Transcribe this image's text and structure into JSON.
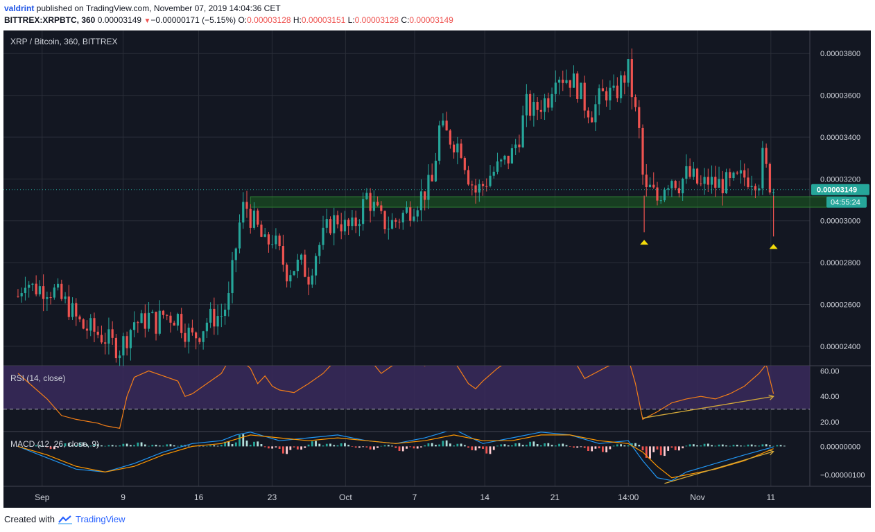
{
  "header": {
    "author": "valdrint",
    "published_text": " published on TradingView.com, November 07, 2019 14:04:36 CET",
    "symbol_line": "BITTREX:XRPBTC, 360",
    "last": "0.00003149",
    "change_arrow": "▼",
    "change": "−0.00000171 (−5.15%)",
    "o_label": "O:",
    "o_value": "0.00003128",
    "h_label": "H:",
    "h_value": "0.00003151",
    "l_label": "L:",
    "l_value": "0.00003128",
    "c_label": "C:",
    "c_value": "0.00003149"
  },
  "footer": {
    "created_with": "Created with",
    "brand": "TradingView"
  },
  "colors": {
    "background": "#131722",
    "grid": "#2a2e39",
    "up": "#26a69a",
    "down": "#ef5350",
    "rsi_line": "#f57f17",
    "rsi_band": "#3a2a5c",
    "macd_line": "#2196f3",
    "signal_line": "#ff9800",
    "support_zone": "#1b5e20",
    "trendline": "#d4a93a",
    "marker": "#f5dd0b",
    "price_tag": "#26a69a"
  },
  "chart_data": {
    "type": "candlestick",
    "main_panel": {
      "title": "XRP / Bitcoin, 360, BITTREX",
      "y_ticks": [
        "0.00003800",
        "0.00003600",
        "0.00003400",
        "0.00003200",
        "0.00003000",
        "0.00002800",
        "0.00002600",
        "0.00002400"
      ],
      "y_tick_values": [
        3.8e-05,
        3.6e-05,
        3.4e-05,
        3.2e-05,
        3e-05,
        2.8e-05,
        2.6e-05,
        2.4e-05
      ],
      "ylim": [
        2.31e-05,
        3.91e-05
      ],
      "last_price_label": "0.00003149",
      "countdown_label": "04:55:24",
      "last_price": 3.149e-05,
      "support_zone": [
        3.065e-05,
        3.115e-05
      ],
      "support_zone_x": [
        16.0,
        57.0
      ],
      "markers": [
        {
          "x": 43.1,
          "price": 2.945e-05
        },
        {
          "x": 52.0,
          "price": 2.925e-05
        }
      ],
      "close_path": [
        [
          0,
          2.64e-05
        ],
        [
          0.5,
          2.73e-05
        ],
        [
          1,
          2.68e-05
        ],
        [
          2,
          2.68e-05
        ],
        [
          2.5,
          2.66e-05
        ],
        [
          3,
          2.62e-05
        ],
        [
          3.5,
          2.59e-05
        ],
        [
          4,
          2.53e-05
        ],
        [
          4.5,
          2.49e-05
        ],
        [
          5,
          2.48e-05
        ],
        [
          5.5,
          2.46e-05
        ],
        [
          6,
          2.44e-05
        ],
        [
          6.5,
          2.41e-05
        ],
        [
          7,
          2.39e-05
        ],
        [
          7.5,
          2.45e-05
        ],
        [
          8,
          2.52e-05
        ],
        [
          8.5,
          2.51e-05
        ],
        [
          9,
          2.54e-05
        ],
        [
          9.5,
          2.51e-05
        ],
        [
          10,
          2.55e-05
        ],
        [
          11,
          2.54e-05
        ],
        [
          11.5,
          2.48e-05
        ],
        [
          12,
          2.44e-05
        ],
        [
          12.5,
          2.47e-05
        ],
        [
          13,
          2.52e-05
        ],
        [
          13.5,
          2.54e-05
        ],
        [
          14,
          2.55e-05
        ],
        [
          14.5,
          2.62e-05
        ],
        [
          14.8,
          2.78e-05
        ],
        [
          15.2,
          2.97e-05
        ],
        [
          15.6,
          3.09e-05
        ],
        [
          16,
          3.02e-05
        ],
        [
          16.5,
          2.96e-05
        ],
        [
          17,
          2.88e-05
        ],
        [
          17.5,
          2.92e-05
        ],
        [
          18,
          2.84e-05
        ],
        [
          18.5,
          2.76e-05
        ],
        [
          19,
          2.78e-05
        ],
        [
          19.5,
          2.79e-05
        ],
        [
          20,
          2.74e-05
        ],
        [
          20.5,
          2.85e-05
        ],
        [
          21,
          2.92e-05
        ],
        [
          21.5,
          2.99e-05
        ],
        [
          22,
          3.01e-05
        ],
        [
          22.5,
          2.97e-05
        ],
        [
          23,
          2.96e-05
        ],
        [
          23.5,
          3.03e-05
        ],
        [
          24,
          3.12e-05
        ],
        [
          24.5,
          3.06e-05
        ],
        [
          25,
          3e-05
        ],
        [
          25.5,
          2.98e-05
        ],
        [
          26,
          3e-05
        ],
        [
          26.5,
          3.03e-05
        ],
        [
          27,
          3.06e-05
        ],
        [
          27.5,
          3.1e-05
        ],
        [
          28,
          3.14e-05
        ],
        [
          28.5,
          3.18e-05
        ],
        [
          29,
          3.44e-05
        ],
        [
          29.5,
          3.41e-05
        ],
        [
          30,
          3.38e-05
        ],
        [
          30.5,
          3.35e-05
        ],
        [
          31,
          3.22e-05
        ],
        [
          31.5,
          3.14e-05
        ],
        [
          32,
          3.17e-05
        ],
        [
          32.5,
          3.22e-05
        ],
        [
          33,
          3.25e-05
        ],
        [
          33.5,
          3.28e-05
        ],
        [
          34,
          3.32e-05
        ],
        [
          34.5,
          3.41e-05
        ],
        [
          35,
          3.55e-05
        ],
        [
          35.5,
          3.52e-05
        ],
        [
          36,
          3.56e-05
        ],
        [
          36.5,
          3.59e-05
        ],
        [
          37,
          3.72e-05
        ],
        [
          37.5,
          3.69e-05
        ],
        [
          38,
          3.68e-05
        ],
        [
          38.5,
          3.64e-05
        ],
        [
          39,
          3.56e-05
        ],
        [
          39.5,
          3.52e-05
        ],
        [
          40,
          3.58e-05
        ],
        [
          40.5,
          3.62e-05
        ],
        [
          41,
          3.59e-05
        ],
        [
          41.5,
          3.66e-05
        ],
        [
          42,
          3.72e-05
        ],
        [
          42.4,
          3.55e-05
        ],
        [
          42.8,
          3.4e-05
        ],
        [
          43.1,
          3.12e-05
        ],
        [
          43.5,
          3.15e-05
        ],
        [
          44,
          3.1e-05
        ],
        [
          44.5,
          3.18e-05
        ],
        [
          45,
          3.21e-05
        ],
        [
          45.5,
          3.18e-05
        ],
        [
          46,
          3.22e-05
        ],
        [
          46.5,
          3.2e-05
        ],
        [
          47,
          3.16e-05
        ],
        [
          47.5,
          3.19e-05
        ],
        [
          48,
          3.17e-05
        ],
        [
          48.5,
          3.18e-05
        ],
        [
          49,
          3.17e-05
        ],
        [
          49.5,
          3.19e-05
        ],
        [
          50,
          3.21e-05
        ],
        [
          50.5,
          3.21e-05
        ],
        [
          51,
          3.2e-05
        ],
        [
          51.3,
          3.32e-05
        ],
        [
          51.6,
          3.2e-05
        ],
        [
          52,
          3.149e-05
        ]
      ]
    },
    "rsi_panel": {
      "label": "RSI (14, close)",
      "y_ticks": [
        "60.00",
        "40.00",
        "20.00"
      ],
      "y_tick_values": [
        60,
        40,
        20
      ],
      "ylim": [
        13,
        64
      ],
      "dashed_level": 30,
      "band": [
        30,
        70
      ],
      "series": [
        [
          0,
          58
        ],
        [
          1,
          48
        ],
        [
          2,
          38
        ],
        [
          3,
          25
        ],
        [
          4,
          22
        ],
        [
          5,
          20
        ],
        [
          5.5,
          19
        ],
        [
          6,
          17
        ],
        [
          6.5,
          16
        ],
        [
          7,
          15
        ],
        [
          7.5,
          40
        ],
        [
          8,
          55
        ],
        [
          9,
          60
        ],
        [
          10,
          56
        ],
        [
          11,
          52
        ],
        [
          11.5,
          40
        ],
        [
          12,
          42
        ],
        [
          13,
          50
        ],
        [
          14,
          58
        ],
        [
          14.5,
          68
        ],
        [
          15,
          72
        ],
        [
          16,
          62
        ],
        [
          16.5,
          50
        ],
        [
          17,
          56
        ],
        [
          17.5,
          48
        ],
        [
          18,
          45
        ],
        [
          19,
          43
        ],
        [
          20,
          50
        ],
        [
          21,
          58
        ],
        [
          22,
          70
        ],
        [
          23,
          66
        ],
        [
          24,
          72
        ],
        [
          25,
          58
        ],
        [
          26,
          66
        ],
        [
          27,
          70
        ],
        [
          28,
          64
        ],
        [
          29,
          75
        ],
        [
          30,
          68
        ],
        [
          31,
          50
        ],
        [
          31.5,
          46
        ],
        [
          32,
          52
        ],
        [
          33,
          62
        ],
        [
          34,
          70
        ],
        [
          35,
          75
        ],
        [
          36,
          72
        ],
        [
          37,
          78
        ],
        [
          38,
          74
        ],
        [
          39,
          54
        ],
        [
          40,
          60
        ],
        [
          41,
          66
        ],
        [
          42,
          70
        ],
        [
          42.5,
          50
        ],
        [
          43,
          22
        ],
        [
          43.5,
          25
        ],
        [
          44,
          28
        ],
        [
          45,
          35
        ],
        [
          46,
          38
        ],
        [
          47,
          40
        ],
        [
          48,
          38
        ],
        [
          49,
          42
        ],
        [
          50,
          48
        ],
        [
          51,
          58
        ],
        [
          51.5,
          65
        ],
        [
          52,
          42
        ]
      ],
      "trendline": [
        [
          43,
          23
        ],
        [
          52,
          40
        ]
      ]
    },
    "macd_panel": {
      "label": "MACD (12, 26, close, 9)",
      "y_ticks": [
        "0.00000000",
        "−0.00000100"
      ],
      "y_tick_values": [
        0,
        -1e-06
      ],
      "ylim": [
        -1.4e-06,
        5.2e-07
      ],
      "macd_line": [
        [
          0,
          0.0
        ],
        [
          2,
          -4e-07
        ],
        [
          4,
          -8e-07
        ],
        [
          6,
          -9e-07
        ],
        [
          8,
          -6e-07
        ],
        [
          10,
          -2e-07
        ],
        [
          12,
          1e-07
        ],
        [
          14,
          2e-07
        ],
        [
          15,
          4e-07
        ],
        [
          16,
          5e-07
        ],
        [
          18,
          2e-07
        ],
        [
          20,
          3e-07
        ],
        [
          22,
          4e-07
        ],
        [
          24,
          2e-07
        ],
        [
          26,
          1e-07
        ],
        [
          28,
          3e-07
        ],
        [
          30,
          6e-07
        ],
        [
          32,
          1e-07
        ],
        [
          34,
          3e-07
        ],
        [
          36,
          5e-07
        ],
        [
          38,
          4e-07
        ],
        [
          40,
          1e-07
        ],
        [
          42,
          2e-07
        ],
        [
          43,
          -5e-07
        ],
        [
          44,
          -1.1e-06
        ],
        [
          45,
          -1.2e-06
        ],
        [
          46,
          -9e-07
        ],
        [
          48,
          -6e-07
        ],
        [
          50,
          -3e-07
        ],
        [
          52,
          -2e-08
        ]
      ],
      "signal_line": [
        [
          0,
          0.0
        ],
        [
          2,
          -3e-07
        ],
        [
          4,
          -7e-07
        ],
        [
          6,
          -9e-07
        ],
        [
          8,
          -7e-07
        ],
        [
          10,
          -3e-07
        ],
        [
          12,
          0.0
        ],
        [
          14,
          1e-07
        ],
        [
          16,
          4e-07
        ],
        [
          18,
          3e-07
        ],
        [
          20,
          2e-07
        ],
        [
          22,
          3e-07
        ],
        [
          24,
          2e-07
        ],
        [
          26,
          1e-07
        ],
        [
          28,
          2e-07
        ],
        [
          30,
          4e-07
        ],
        [
          32,
          2e-07
        ],
        [
          34,
          2e-07
        ],
        [
          36,
          4e-07
        ],
        [
          38,
          4e-07
        ],
        [
          40,
          2e-07
        ],
        [
          42,
          1e-07
        ],
        [
          43,
          -2e-07
        ],
        [
          44,
          -7e-07
        ],
        [
          45,
          -1.1e-06
        ],
        [
          46,
          -1e-06
        ],
        [
          48,
          -8e-07
        ],
        [
          50,
          -5e-07
        ],
        [
          52,
          -8e-08
        ]
      ],
      "histogram": [
        [
          1,
          5e-08
        ],
        [
          2,
          -1e-07
        ],
        [
          3,
          1.2e-07
        ],
        [
          4,
          1.5e-07
        ],
        [
          5,
          8e-08
        ],
        [
          6,
          5e-08
        ],
        [
          7,
          1e-07
        ],
        [
          8,
          1.5e-07
        ],
        [
          9,
          6e-08
        ],
        [
          10,
          8e-08
        ],
        [
          11,
          5e-08
        ],
        [
          12,
          3e-08
        ],
        [
          13,
          4e-08
        ],
        [
          14,
          1.8e-07
        ],
        [
          15,
          4.5e-07
        ],
        [
          16,
          1.8e-07
        ],
        [
          17,
          -8e-08
        ],
        [
          18,
          -2.8e-07
        ],
        [
          19,
          -1.2e-07
        ],
        [
          20,
          2e-07
        ],
        [
          21,
          1e-07
        ],
        [
          22,
          1.2e-07
        ],
        [
          23,
          -5e-08
        ],
        [
          24,
          -1.2e-07
        ],
        [
          25,
          5e-08
        ],
        [
          26,
          -1.8e-07
        ],
        [
          27,
          -8e-08
        ],
        [
          28,
          1.2e-07
        ],
        [
          29,
          2.2e-07
        ],
        [
          30,
          1e-07
        ],
        [
          31,
          -1.5e-07
        ],
        [
          32,
          -2.8e-07
        ],
        [
          33,
          8e-08
        ],
        [
          34,
          1.2e-07
        ],
        [
          35,
          1.8e-07
        ],
        [
          36,
          1.2e-07
        ],
        [
          37,
          1e-07
        ],
        [
          38,
          -5e-08
        ],
        [
          39,
          -1.8e-07
        ],
        [
          40,
          -2.2e-07
        ],
        [
          41,
          8e-08
        ],
        [
          42,
          1.2e-07
        ],
        [
          43,
          -4.5e-07
        ],
        [
          44,
          -3.5e-07
        ],
        [
          45,
          -1.5e-07
        ],
        [
          46,
          8e-08
        ],
        [
          47,
          1e-07
        ],
        [
          48,
          7e-08
        ],
        [
          49,
          6e-08
        ],
        [
          50,
          7e-08
        ],
        [
          51,
          8e-08
        ],
        [
          52,
          5e-08
        ]
      ],
      "trendline": [
        [
          44.5,
          -1.3e-06
        ],
        [
          52,
          -1.8e-07
        ]
      ]
    },
    "x_axis": {
      "ticks": [
        {
          "x": 0.5,
          "label": "Sep"
        },
        {
          "x": 8,
          "label": "9"
        },
        {
          "x": 15,
          "label": "16"
        },
        {
          "x": 21.8,
          "label": "23"
        },
        {
          "x": 28.6,
          "label": "Oct"
        },
        {
          "x": 35,
          "label": "7"
        },
        {
          "x": 41.5,
          "label": "14"
        },
        {
          "x": 48,
          "label": "21"
        },
        {
          "x": 54.8,
          "label": "14:00"
        },
        {
          "x": 61.2,
          "label": "Nov"
        },
        {
          "x": 68,
          "label": "11"
        }
      ]
    }
  }
}
